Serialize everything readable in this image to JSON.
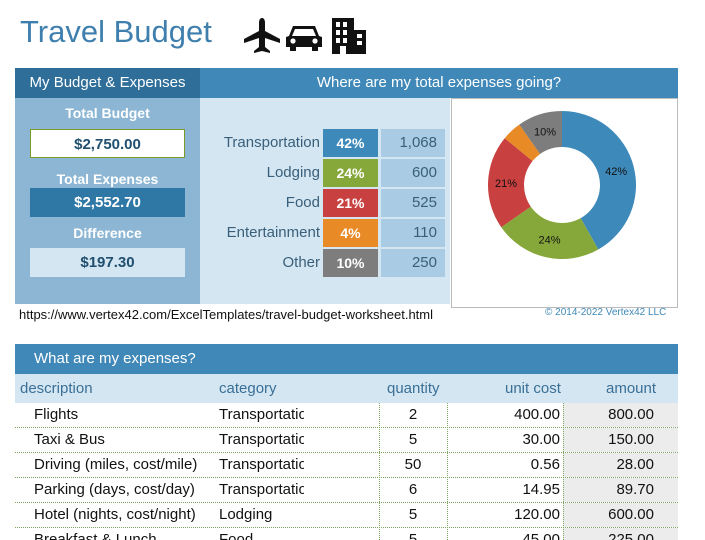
{
  "title": "Travel Budget",
  "header_icons": [
    "airplane-icon",
    "car-icon",
    "building-icon"
  ],
  "budget": {
    "section_title": "My Budget & Expenses",
    "total_budget_label": "Total Budget",
    "total_budget_value": "$2,750.00",
    "total_expenses_label": "Total Expenses",
    "total_expenses_value": "$2,552.70",
    "difference_label": "Difference",
    "difference_value": "$197.30"
  },
  "breakdown": {
    "title": "Where are my total expenses going?",
    "categories": [
      {
        "name": "Transportation",
        "pct": "42%",
        "value": "1,068",
        "color": "#3d89ba"
      },
      {
        "name": "Lodging",
        "pct": "24%",
        "value": "600",
        "color": "#86a83a"
      },
      {
        "name": "Food",
        "pct": "21%",
        "value": "525",
        "color": "#c84040"
      },
      {
        "name": "Entertainment",
        "pct": "4%",
        "value": "110",
        "color": "#e88a25"
      },
      {
        "name": "Other",
        "pct": "10%",
        "value": "250",
        "color": "#7d7d7d"
      }
    ]
  },
  "chart_data": {
    "type": "pie",
    "donut": true,
    "categories": [
      "Transportation",
      "Lodging",
      "Food",
      "Entertainment",
      "Other"
    ],
    "values": [
      1068,
      600,
      525,
      110,
      250
    ],
    "labels": [
      "42%",
      "24%",
      "21%",
      "",
      "10%"
    ],
    "colors": [
      "#3d89ba",
      "#86a83a",
      "#c84040",
      "#e88a25",
      "#7d7d7d"
    ]
  },
  "footer": {
    "url": "https://www.vertex42.com/ExcelTemplates/travel-budget-worksheet.html",
    "copyright": "© 2014-2022 Vertex42 LLC"
  },
  "expenses": {
    "title": "What are my expenses?",
    "columns": [
      "description",
      "category",
      "quantity",
      "unit cost",
      "amount"
    ],
    "rows": [
      {
        "description": "Flights",
        "category": "Transportation",
        "quantity": "2",
        "unit_cost": "400.00",
        "amount": "800.00"
      },
      {
        "description": "Taxi & Bus",
        "category": "Transportation",
        "quantity": "5",
        "unit_cost": "30.00",
        "amount": "150.00"
      },
      {
        "description": "Driving (miles, cost/mile)",
        "category": "Transportation",
        "quantity": "50",
        "unit_cost": "0.56",
        "amount": "28.00"
      },
      {
        "description": "Parking (days, cost/day)",
        "category": "Transportation",
        "quantity": "6",
        "unit_cost": "14.95",
        "amount": "89.70"
      },
      {
        "description": "Hotel (nights, cost/night)",
        "category": "Lodging",
        "quantity": "5",
        "unit_cost": "120.00",
        "amount": "600.00"
      },
      {
        "description": "Breakfast & Lunch",
        "category": "Food",
        "quantity": "5",
        "unit_cost": "45.00",
        "amount": "225.00"
      }
    ]
  }
}
